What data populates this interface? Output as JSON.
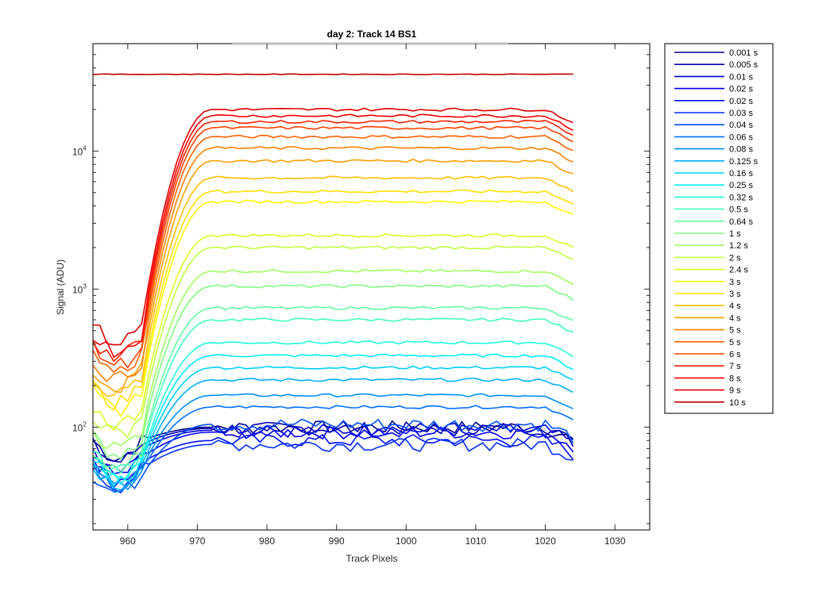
{
  "chart_data": {
    "type": "line",
    "title": "day 2: Track 14  BS1",
    "xlabel": "Track Pixels",
    "ylabel": "Signal (ADU)",
    "xlim": [
      955,
      1035
    ],
    "ylim": [
      18,
      60000
    ],
    "yscale": "log",
    "xticks": [
      960,
      970,
      980,
      990,
      1000,
      1010,
      1020,
      1030
    ],
    "yticks": [
      {
        "base": "10",
        "exp": "2",
        "value": 100
      },
      {
        "base": "10",
        "exp": "3",
        "value": 1000
      },
      {
        "base": "10",
        "exp": "4",
        "value": 10000
      }
    ],
    "grid": false,
    "legend_position": "outside-right",
    "series": [
      {
        "name": "0.001 s",
        "color": "#00008F",
        "low": 80,
        "high": 100
      },
      {
        "name": "0.005 s",
        "color": "#0000AF",
        "low": 75,
        "high": 98
      },
      {
        "name": "0.01 s",
        "color": "#0000CF",
        "low": 70,
        "high": 95
      },
      {
        "name": "0.02 s",
        "color": "#0000EF",
        "low": 60,
        "high": 92
      },
      {
        "name": "0.02 s",
        "color": "#0010FF",
        "low": 55,
        "high": 80
      },
      {
        "name": "0.03 s",
        "color": "#0030FF",
        "low": 50,
        "high": 75
      },
      {
        "name": "0.04 s",
        "color": "#0050FF",
        "low": 45,
        "high": 105
      },
      {
        "name": "0.06 s",
        "color": "#0070FF",
        "low": 48,
        "high": 140
      },
      {
        "name": "0.08 s",
        "color": "#0090FF",
        "low": 50,
        "high": 170
      },
      {
        "name": "0.125 s",
        "color": "#00B0FF",
        "low": 52,
        "high": 220
      },
      {
        "name": "0.16 s",
        "color": "#00D0FF",
        "low": 55,
        "high": 270
      },
      {
        "name": "0.25 s",
        "color": "#00F0FF",
        "low": 58,
        "high": 330
      },
      {
        "name": "0.32 s",
        "color": "#20FFDF",
        "low": 60,
        "high": 410
      },
      {
        "name": "0.5 s",
        "color": "#40FFBF",
        "low": 65,
        "high": 600
      },
      {
        "name": "0.64 s",
        "color": "#60FF9F",
        "low": 70,
        "high": 730
      },
      {
        "name": "1 s",
        "color": "#80FF80",
        "low": 85,
        "high": 1050
      },
      {
        "name": "1.2 s",
        "color": "#9FFF60",
        "low": 95,
        "high": 1350
      },
      {
        "name": "2 s",
        "color": "#BFFF40",
        "low": 120,
        "high": 2000
      },
      {
        "name": "2.4 s",
        "color": "#DFFF20",
        "low": 140,
        "high": 2450
      },
      {
        "name": "3 s",
        "color": "#FFFF00",
        "low": 180,
        "high": 4300
      },
      {
        "name": "3 s",
        "color": "#FFDF00",
        "low": 200,
        "high": 5100
      },
      {
        "name": "4 s",
        "color": "#FFBF00",
        "low": 230,
        "high": 6400
      },
      {
        "name": "4 s",
        "color": "#FF9F00",
        "low": 260,
        "high": 8500
      },
      {
        "name": "5 s",
        "color": "#FF8000",
        "low": 300,
        "high": 10500
      },
      {
        "name": "5 s",
        "color": "#FF6000",
        "low": 340,
        "high": 12700
      },
      {
        "name": "6 s",
        "color": "#FF4000",
        "low": 380,
        "high": 14700
      },
      {
        "name": "7 s",
        "color": "#FF2000",
        "low": 430,
        "high": 16300
      },
      {
        "name": "8 s",
        "color": "#FF0000",
        "low": 480,
        "high": 18000
      },
      {
        "name": "9 s",
        "color": "#DF0000",
        "low": 550,
        "high": 20000
      },
      {
        "name": "10 s",
        "color": "#BF0000",
        "low": 36000,
        "high": 36000
      }
    ]
  }
}
